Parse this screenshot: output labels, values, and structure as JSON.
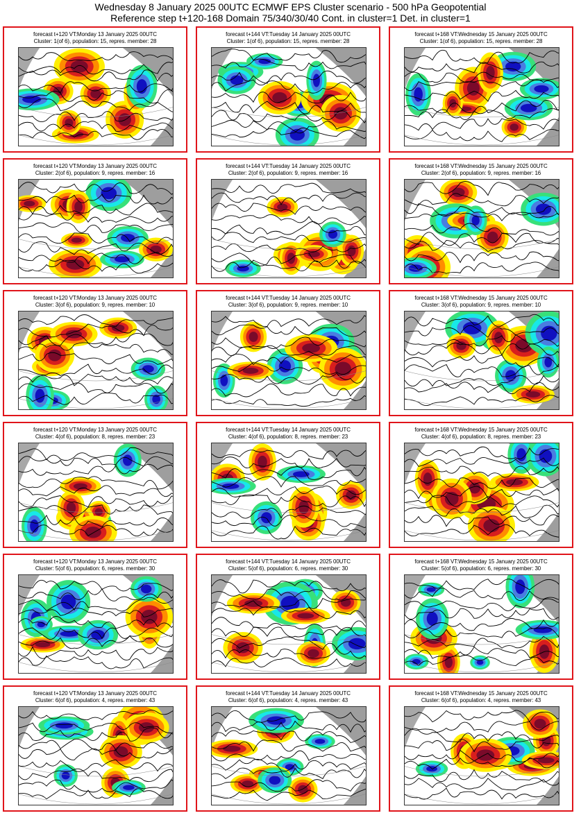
{
  "header": {
    "title_line": "Wednesday 8 January 2025 00UTC ECMWF EPS Cluster scenario - 500 hPa Geopotential",
    "subtitle_line": "Reference step t+120-168 Domain 75/340/30/40 Cont. in cluster=1 Det. in cluster=1"
  },
  "colors": {
    "panel_border": "#e0141a",
    "positive_anomaly_strong": "#7a0a2a",
    "positive_anomaly": "#d81e1e",
    "positive_anomaly_weak": "#ff8c00",
    "positive_anomaly_faint": "#ffef00",
    "negative_anomaly_faint": "#38e07a",
    "negative_anomaly": "#18e8e8",
    "negative_anomaly_strong": "#4a7de0",
    "negative_anomaly_deep": "#1010c0",
    "land_mask": "#9e9e9e"
  },
  "rows": [
    {
      "cluster": 1,
      "panels": [
        {
          "line1": "forecast t+120 VT:Monday 13 January 2025 00UTC",
          "line2": "Cluster: 1(of 6), population: 15, repres. member: 28"
        },
        {
          "line1": "forecast t+144 VT:Tuesday 14 January 2025 00UTC",
          "line2": "Cluster: 1(of 6), population: 15, repres. member: 28"
        },
        {
          "line1": "forecast t+168 VT:Wednesday 15 January 2025 00UTC",
          "line2": "Cluster: 1(of 6), population: 15, repres. member: 28"
        }
      ]
    },
    {
      "cluster": 2,
      "panels": [
        {
          "line1": "forecast t+120 VT:Monday 13 January 2025 00UTC",
          "line2": "Cluster: 2(of 6), population: 9, repres. member: 16"
        },
        {
          "line1": "forecast t+144 VT:Tuesday 14 January 2025 00UTC",
          "line2": "Cluster: 2(of 6), population: 9, repres. member: 16"
        },
        {
          "line1": "forecast t+168 VT:Wednesday 15 January 2025 00UTC",
          "line2": "Cluster: 2(of 6), population: 9, repres. member: 16"
        }
      ]
    },
    {
      "cluster": 3,
      "panels": [
        {
          "line1": "forecast t+120 VT:Monday 13 January 2025 00UTC",
          "line2": "Cluster: 3(of 6), population: 9, repres. member: 10"
        },
        {
          "line1": "forecast t+144 VT:Tuesday 14 January 2025 00UTC",
          "line2": "Cluster: 3(of 6), population: 9, repres. member: 10"
        },
        {
          "line1": "forecast t+168 VT:Wednesday 15 January 2025 00UTC",
          "line2": "Cluster: 3(of 6), population: 9, repres. member: 10"
        }
      ]
    },
    {
      "cluster": 4,
      "panels": [
        {
          "line1": "forecast t+120 VT:Monday 13 January 2025 00UTC",
          "line2": "Cluster: 4(of 6), population: 8, repres. member: 23"
        },
        {
          "line1": "forecast t+144 VT:Tuesday 14 January 2025 00UTC",
          "line2": "Cluster: 4(of 6), population: 8, repres. member: 23"
        },
        {
          "line1": "forecast t+168 VT:Wednesday 15 January 2025 00UTC",
          "line2": "Cluster: 4(of 6), population: 8, repres. member: 23"
        }
      ]
    },
    {
      "cluster": 5,
      "panels": [
        {
          "line1": "forecast t+120 VT:Monday 13 January 2025 00UTC",
          "line2": "Cluster: 5(of 6), population: 6, repres. member: 30"
        },
        {
          "line1": "forecast t+144 VT:Tuesday 14 January 2025 00UTC",
          "line2": "Cluster: 5(of 6), population: 6, repres. member: 30"
        },
        {
          "line1": "forecast t+168 VT:Wednesday 15 January 2025 00UTC",
          "line2": "Cluster: 5(of 6), population: 6, repres. member: 30"
        }
      ]
    },
    {
      "cluster": 6,
      "panels": [
        {
          "line1": "forecast t+120 VT:Monday 13 January 2025 00UTC",
          "line2": "Cluster: 6(of 6), population: 4, repres. member: 43"
        },
        {
          "line1": "forecast t+144 VT:Tuesday 14 January 2025 00UTC",
          "line2": "Cluster: 6(of 6), population: 4, repres. member: 43"
        },
        {
          "line1": "forecast t+168 VT:Wednesday 15 January 2025 00UTC",
          "line2": "Cluster: 6(of 6), population: 4, repres. member: 43"
        }
      ]
    }
  ]
}
